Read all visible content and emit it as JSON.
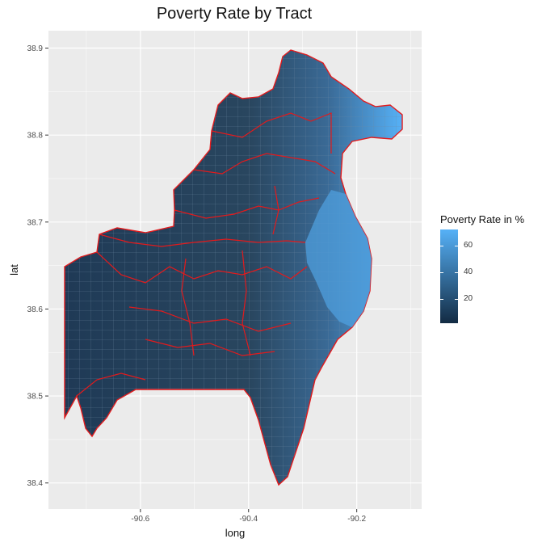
{
  "title": "Poverty Rate by Tract",
  "x_axis": {
    "label": "long",
    "ticks": [
      "-90.6",
      "-90.4",
      "-90.2"
    ]
  },
  "y_axis": {
    "label": "lat",
    "ticks": [
      "38.9",
      "38.8",
      "38.7",
      "38.6",
      "38.5",
      "38.4"
    ]
  },
  "legend": {
    "title": "Poverty Rate in %",
    "labels": [
      "60",
      "40",
      "20"
    ],
    "color_low": "#132b43",
    "color_high": "#56b1f7"
  },
  "colors": {
    "panel_bg": "#ebebeb",
    "grid": "#ffffff",
    "boundary": "#e31a1c",
    "tract_dark": "#27435e",
    "tract_light": "#56b1f7"
  },
  "chart_data": {
    "type": "map",
    "xlim": [
      -90.77,
      -90.08
    ],
    "ylim": [
      38.37,
      38.92
    ],
    "x_breaks": [
      -90.6,
      -90.4,
      -90.2
    ],
    "y_breaks": [
      38.4,
      38.5,
      38.6,
      38.7,
      38.8,
      38.9
    ],
    "fill_scale": {
      "variable": "Poverty Rate in %",
      "min": 2,
      "max": 72,
      "breaks": [
        20,
        40,
        60
      ]
    },
    "grid": true
  }
}
